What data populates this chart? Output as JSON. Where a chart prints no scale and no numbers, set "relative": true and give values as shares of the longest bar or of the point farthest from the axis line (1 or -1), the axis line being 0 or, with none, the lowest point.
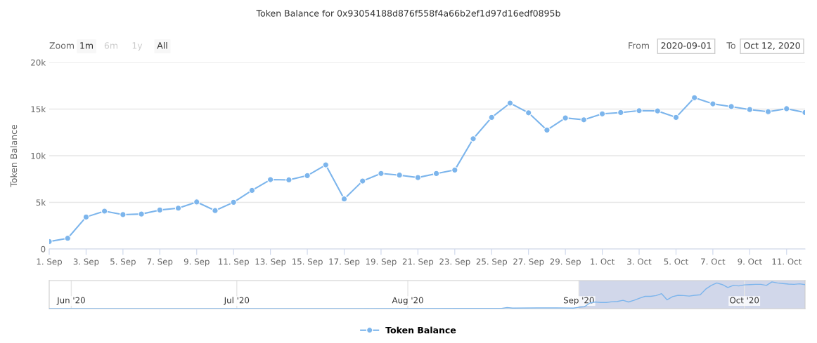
{
  "chart_data": [
    {
      "type": "line",
      "title": "Token Balance for 0x93054188d876f558f4a66b2ef1d97d16edf0895b",
      "ylabel": "Token Balance",
      "annotations": [
        "Zoom",
        "1m",
        "6m",
        "1y",
        "All",
        "From",
        "2020-09-01",
        "To",
        "Oct 12, 2020"
      ],
      "x": [
        "2020-09-01",
        "2020-09-02",
        "2020-09-03",
        "2020-09-04",
        "2020-09-05",
        "2020-09-06",
        "2020-09-07",
        "2020-09-08",
        "2020-09-09",
        "2020-09-10",
        "2020-09-11",
        "2020-09-12",
        "2020-09-13",
        "2020-09-14",
        "2020-09-15",
        "2020-09-16",
        "2020-09-17",
        "2020-09-18",
        "2020-09-19",
        "2020-09-20",
        "2020-09-21",
        "2020-09-22",
        "2020-09-23",
        "2020-09-24",
        "2020-09-25",
        "2020-09-26",
        "2020-09-27",
        "2020-09-28",
        "2020-09-29",
        "2020-09-30",
        "2020-10-01",
        "2020-10-02",
        "2020-10-03",
        "2020-10-04",
        "2020-10-05",
        "2020-10-06",
        "2020-10-07",
        "2020-10-08",
        "2020-10-09",
        "2020-10-10",
        "2020-10-11",
        "2020-10-12"
      ],
      "series": [
        {
          "name": "Token Balance",
          "color": "#7cb5ec",
          "values": [
            800,
            1150,
            3430,
            4060,
            3690,
            3750,
            4180,
            4380,
            5040,
            4120,
            5010,
            6280,
            7440,
            7410,
            7870,
            9020,
            5360,
            7290,
            8100,
            7920,
            7660,
            8090,
            8470,
            11820,
            14110,
            15640,
            14600,
            12750,
            14050,
            13850,
            14490,
            14630,
            14830,
            14800,
            14110,
            16220,
            15560,
            15270,
            14950,
            14720,
            15040,
            14630
          ]
        }
      ],
      "xlim": [
        "2020-09-01",
        "2020-10-12"
      ],
      "xticks": [
        {
          "value": "2020-09-01",
          "label": "1. Sep"
        },
        {
          "value": "2020-09-03",
          "label": "3. Sep"
        },
        {
          "value": "2020-09-05",
          "label": "5. Sep"
        },
        {
          "value": "2020-09-07",
          "label": "7. Sep"
        },
        {
          "value": "2020-09-09",
          "label": "9. Sep"
        },
        {
          "value": "2020-09-11",
          "label": "11. Sep"
        },
        {
          "value": "2020-09-13",
          "label": "13. Sep"
        },
        {
          "value": "2020-09-15",
          "label": "15. Sep"
        },
        {
          "value": "2020-09-17",
          "label": "17. Sep"
        },
        {
          "value": "2020-09-19",
          "label": "19. Sep"
        },
        {
          "value": "2020-09-21",
          "label": "21. Sep"
        },
        {
          "value": "2020-09-23",
          "label": "23. Sep"
        },
        {
          "value": "2020-09-25",
          "label": "25. Sep"
        },
        {
          "value": "2020-09-27",
          "label": "27. Sep"
        },
        {
          "value": "2020-09-29",
          "label": "29. Sep"
        },
        {
          "value": "2020-10-01",
          "label": "1. Oct"
        },
        {
          "value": "2020-10-03",
          "label": "3. Oct"
        },
        {
          "value": "2020-10-05",
          "label": "5. Oct"
        },
        {
          "value": "2020-10-07",
          "label": "7. Oct"
        },
        {
          "value": "2020-10-09",
          "label": "9. Oct"
        },
        {
          "value": "2020-10-11",
          "label": "11. Oct"
        }
      ],
      "ylim": [
        0,
        20000
      ],
      "yticks": [
        {
          "value": 0,
          "label": "0"
        },
        {
          "value": 5000,
          "label": "5k"
        },
        {
          "value": 10000,
          "label": "10k"
        },
        {
          "value": 15000,
          "label": "15k"
        },
        {
          "value": 20000,
          "label": "20k"
        }
      ],
      "grid": "y",
      "marker": "circle",
      "line_style": "solid",
      "legend": "bottom"
    },
    {
      "type": "line",
      "relative": true,
      "x": [
        "2020-05-28",
        "2020-07-15",
        "2020-08-12",
        "2020-08-18",
        "2020-08-19",
        "2020-08-20",
        "2020-08-28",
        "2020-08-31",
        "2020-09-01",
        "2020-09-02",
        "2020-09-03",
        "2020-09-04",
        "2020-09-05",
        "2020-09-06",
        "2020-09-07",
        "2020-09-08",
        "2020-09-09",
        "2020-09-10",
        "2020-09-11",
        "2020-09-12",
        "2020-09-13",
        "2020-09-14",
        "2020-09-15",
        "2020-09-16",
        "2020-09-17",
        "2020-09-18",
        "2020-09-19",
        "2020-09-20",
        "2020-09-21",
        "2020-09-22",
        "2020-09-23",
        "2020-09-24",
        "2020-09-25",
        "2020-09-26",
        "2020-09-27",
        "2020-09-28",
        "2020-09-29",
        "2020-09-30",
        "2020-10-01",
        "2020-10-02",
        "2020-10-03",
        "2020-10-04",
        "2020-10-05",
        "2020-10-06",
        "2020-10-07",
        "2020-10-08",
        "2020-10-09",
        "2020-10-10",
        "2020-10-11",
        "2020-10-12"
      ],
      "series": [
        {
          "color": "#7cb5ec",
          "values": [
            0,
            0,
            0.01,
            0.01,
            0.04,
            0.02,
            0.03,
            0.02,
            0.05,
            0.07,
            0.21,
            0.25,
            0.23,
            0.23,
            0.26,
            0.27,
            0.31,
            0.25,
            0.31,
            0.39,
            0.46,
            0.46,
            0.49,
            0.56,
            0.33,
            0.45,
            0.5,
            0.49,
            0.47,
            0.5,
            0.52,
            0.73,
            0.87,
            0.96,
            0.9,
            0.79,
            0.87,
            0.85,
            0.89,
            0.9,
            0.91,
            0.91,
            0.87,
            1,
            0.96,
            0.94,
            0.92,
            0.91,
            0.93,
            0.9
          ]
        }
      ],
      "xlim": [
        "2020-05-28",
        "2020-10-12"
      ],
      "xticks": [
        {
          "value": "2020-06-01",
          "label": "Jun '20"
        },
        {
          "value": "2020-07-01",
          "label": "Jul '20"
        },
        {
          "value": "2020-08-01",
          "label": "Aug '20"
        },
        {
          "value": "2020-09-01",
          "label": "Sep '20"
        },
        {
          "value": "2020-10-01",
          "label": "Oct '20"
        }
      ],
      "bands": [
        {
          "axis": "x",
          "from": "2020-09-01",
          "to": "2020-10-12",
          "color": "#ccd3e8"
        }
      ],
      "grid": "x"
    }
  ]
}
